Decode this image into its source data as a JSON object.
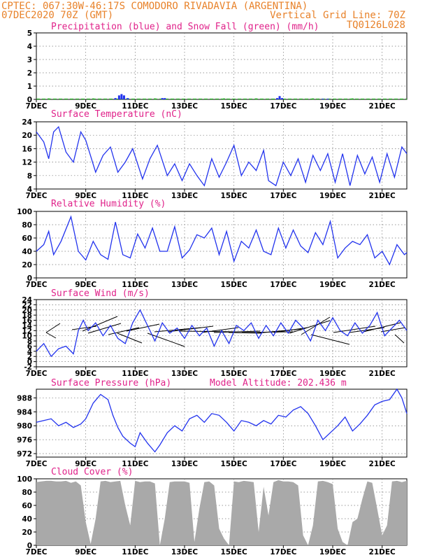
{
  "header": {
    "line1_left": "CPTEC:   067:30W-46:17S  COMODORO RIVADAVIA (ARGENTINA)",
    "line2_left": "07DEC2020 70Z (GMT)",
    "line2_right": "Vertical Grid Line: 70Z",
    "line3_right": "TQ0126L028"
  },
  "colors": {
    "header": "#e8822a",
    "panel_title": "#e0228a",
    "line": "#2233ee",
    "precip": "#2233ee",
    "snow": "#22aa22",
    "cloud": "#a9a9a9"
  },
  "x_axis": {
    "start_day": 7,
    "end_day": 22,
    "tick_days": [
      7,
      9,
      11,
      13,
      15,
      17,
      19,
      21
    ],
    "tick_labels": [
      "7DEC",
      "9DEC",
      "11DEC",
      "13DEC",
      "15DEC",
      "17DEC",
      "19DEC",
      "21DEC"
    ]
  },
  "chart_data": [
    {
      "type": "bar",
      "title": "Precipitation (blue) and Snow Fall (green) (mm/h)",
      "ylim": [
        0,
        5
      ],
      "yticks": [
        0,
        1,
        2,
        3,
        4,
        5
      ],
      "series": [
        {
          "name": "Precipitation",
          "x": [
            10.2,
            10.35,
            10.45,
            10.55,
            10.7,
            12.1,
            12.2,
            16.75,
            16.85,
            16.95,
            18.6,
            18.8
          ],
          "values": [
            0.1,
            0.3,
            0.4,
            0.3,
            0.1,
            0.1,
            0.1,
            0.1,
            0.25,
            0.1,
            0.05,
            0.05
          ]
        },
        {
          "name": "Snow Fall",
          "x": [
            7.5,
            9.3,
            11.8,
            14.6,
            15.9,
            18.2,
            19.8
          ],
          "values": [
            0.02,
            0.02,
            0.02,
            0.02,
            0.02,
            0.02,
            0.02
          ]
        }
      ]
    },
    {
      "type": "line",
      "title": "Surface Temperature (nC)",
      "ylim": [
        4,
        24
      ],
      "yticks": [
        4,
        8,
        12,
        16,
        20,
        24
      ],
      "x": [
        7.0,
        7.3,
        7.5,
        7.7,
        7.9,
        8.2,
        8.5,
        8.8,
        9.0,
        9.4,
        9.7,
        10.0,
        10.3,
        10.6,
        10.9,
        11.3,
        11.6,
        11.9,
        12.3,
        12.6,
        12.9,
        13.2,
        13.5,
        13.8,
        14.1,
        14.4,
        14.7,
        15.0,
        15.3,
        15.6,
        15.9,
        16.2,
        16.4,
        16.7,
        17.0,
        17.3,
        17.6,
        17.9,
        18.2,
        18.5,
        18.8,
        19.1,
        19.4,
        19.7,
        20.0,
        20.3,
        20.6,
        20.9,
        21.2,
        21.5,
        21.8,
        22.0
      ],
      "series": [
        {
          "name": "",
          "values": [
            21,
            18,
            13,
            21,
            22.5,
            15,
            12,
            21,
            18.5,
            9,
            14,
            16.5,
            9,
            12,
            16,
            7,
            13,
            17,
            8,
            11.5,
            6.5,
            11.5,
            8,
            5,
            13,
            7.5,
            12,
            17,
            8,
            12,
            9.5,
            15.5,
            6.5,
            5,
            12,
            8,
            13,
            6,
            14,
            9.5,
            14.5,
            6,
            14.5,
            5,
            14,
            8.5,
            13.5,
            6,
            14.5,
            7.5,
            16.5,
            14.5
          ]
        }
      ]
    },
    {
      "type": "line",
      "title": "Relative Humidity (%)",
      "ylim": [
        0,
        100
      ],
      "yticks": [
        0,
        20,
        40,
        60,
        80,
        100
      ],
      "x": [
        7.0,
        7.3,
        7.5,
        7.7,
        8.0,
        8.4,
        8.7,
        9.0,
        9.3,
        9.6,
        9.9,
        10.2,
        10.5,
        10.8,
        11.1,
        11.4,
        11.7,
        12.0,
        12.3,
        12.6,
        12.9,
        13.2,
        13.5,
        13.8,
        14.1,
        14.4,
        14.7,
        15.0,
        15.3,
        15.6,
        15.9,
        16.2,
        16.5,
        16.8,
        17.1,
        17.4,
        17.7,
        18.0,
        18.3,
        18.6,
        18.9,
        19.2,
        19.5,
        19.8,
        20.1,
        20.4,
        20.7,
        21.0,
        21.3,
        21.6,
        21.9,
        22.0
      ],
      "series": [
        {
          "name": "",
          "values": [
            40,
            50,
            70,
            35,
            55,
            92,
            40,
            27,
            55,
            35,
            28,
            84,
            35,
            30,
            66,
            45,
            75,
            40,
            40,
            77,
            30,
            42,
            65,
            60,
            75,
            35,
            70,
            25,
            55,
            45,
            72,
            40,
            35,
            75,
            45,
            72,
            48,
            38,
            68,
            50,
            85,
            30,
            45,
            55,
            50,
            65,
            30,
            40,
            20,
            50,
            35,
            38
          ]
        }
      ]
    },
    {
      "type": "line",
      "title": "Surface Wind (m/s)",
      "ylim": [
        -2,
        24
      ],
      "yticks": [
        -2,
        0,
        2,
        4,
        6,
        8,
        10,
        12,
        14,
        16,
        18,
        20,
        22,
        24
      ],
      "x": [
        7.0,
        7.3,
        7.6,
        7.9,
        8.2,
        8.5,
        8.7,
        8.9,
        9.1,
        9.4,
        9.7,
        10.0,
        10.3,
        10.6,
        10.9,
        11.2,
        11.5,
        11.8,
        12.1,
        12.4,
        12.7,
        13.0,
        13.3,
        13.6,
        13.9,
        14.2,
        14.5,
        14.8,
        15.1,
        15.4,
        15.7,
        16.0,
        16.3,
        16.6,
        16.9,
        17.2,
        17.5,
        17.8,
        18.1,
        18.4,
        18.7,
        19.0,
        19.3,
        19.6,
        19.9,
        20.2,
        20.5,
        20.8,
        21.1,
        21.4,
        21.7,
        22.0
      ],
      "series": [
        {
          "name": "",
          "values": [
            4,
            7,
            2,
            5,
            6,
            3,
            12,
            16,
            12,
            15,
            10,
            14,
            9,
            7,
            15,
            20,
            14,
            8,
            15,
            11,
            13,
            9,
            14,
            10,
            13,
            6,
            12,
            7,
            14,
            12,
            15,
            9,
            14,
            10,
            15,
            11,
            16,
            13,
            8,
            16,
            12,
            17,
            12,
            10,
            15,
            11,
            14,
            19,
            10,
            13,
            16,
            12
          ]
        }
      ]
    },
    {
      "type": "line",
      "title": "Surface Pressure (hPa)",
      "annotation": "Model Altitude: 202.436 m",
      "ylim": [
        971,
        990.5
      ],
      "yticks": [
        972,
        976,
        980,
        984,
        988
      ],
      "x": [
        7.0,
        7.3,
        7.6,
        7.9,
        8.2,
        8.5,
        8.8,
        9.0,
        9.3,
        9.6,
        9.9,
        10.1,
        10.3,
        10.5,
        10.8,
        11.0,
        11.2,
        11.5,
        11.8,
        12.0,
        12.3,
        12.6,
        12.9,
        13.2,
        13.5,
        13.8,
        14.1,
        14.4,
        14.7,
        15.0,
        15.3,
        15.6,
        15.9,
        16.2,
        16.5,
        16.8,
        17.1,
        17.4,
        17.7,
        18.0,
        18.3,
        18.6,
        18.9,
        19.2,
        19.5,
        19.8,
        20.1,
        20.4,
        20.7,
        21.0,
        21.3,
        21.6,
        21.8,
        22.0
      ],
      "series": [
        {
          "name": "",
          "values": [
            981,
            981.5,
            982,
            980,
            981,
            979.5,
            980.5,
            982,
            986.5,
            989,
            987.5,
            983,
            979.5,
            977,
            975,
            974,
            978,
            975,
            972.5,
            974.5,
            978,
            980,
            978.5,
            982,
            983,
            981,
            983.5,
            983,
            981,
            978.5,
            981.5,
            981,
            980,
            981.5,
            980.5,
            983,
            982.5,
            984.5,
            985.5,
            983.5,
            980,
            976,
            978,
            980,
            982.5,
            978.5,
            980.5,
            983,
            986,
            987,
            987.5,
            990.5,
            988,
            983.5
          ]
        }
      ]
    },
    {
      "type": "area",
      "title": "Cloud Cover (%)",
      "ylim": [
        0,
        100
      ],
      "yticks": [
        0,
        20,
        40,
        60,
        80,
        100
      ],
      "x": [
        7.0,
        7.2,
        7.4,
        7.6,
        7.8,
        8.0,
        8.2,
        8.4,
        8.6,
        8.8,
        9.0,
        9.2,
        9.4,
        9.6,
        9.8,
        10.0,
        10.2,
        10.4,
        10.6,
        10.8,
        11.0,
        11.2,
        11.4,
        11.6,
        11.8,
        12.0,
        12.2,
        12.4,
        12.6,
        12.8,
        13.0,
        13.2,
        13.4,
        13.6,
        13.8,
        14.0,
        14.2,
        14.4,
        14.6,
        14.8,
        15.0,
        15.2,
        15.4,
        15.6,
        15.8,
        16.0,
        16.2,
        16.4,
        16.6,
        16.8,
        17.0,
        17.2,
        17.4,
        17.6,
        17.8,
        18.0,
        18.2,
        18.4,
        18.6,
        18.8,
        19.0,
        19.2,
        19.4,
        19.6,
        19.8,
        20.0,
        20.2,
        20.4,
        20.6,
        20.8,
        21.0,
        21.2,
        21.4,
        21.6,
        21.8,
        22.0
      ],
      "series": [
        {
          "name": "",
          "values": [
            95,
            96,
            97,
            97,
            96,
            96,
            97,
            94,
            96,
            90,
            35,
            2,
            40,
            96,
            97,
            95,
            96,
            97,
            60,
            30,
            97,
            95,
            96,
            96,
            93,
            0,
            40,
            95,
            96,
            96,
            96,
            94,
            5,
            55,
            95,
            96,
            90,
            25,
            10,
            0,
            96,
            95,
            97,
            96,
            95,
            20,
            88,
            45,
            95,
            98,
            96,
            96,
            95,
            90,
            15,
            0,
            30,
            96,
            97,
            95,
            92,
            25,
            5,
            0,
            35,
            40,
            70,
            96,
            94,
            55,
            15,
            30,
            96,
            97,
            95,
            97
          ]
        }
      ]
    }
  ]
}
